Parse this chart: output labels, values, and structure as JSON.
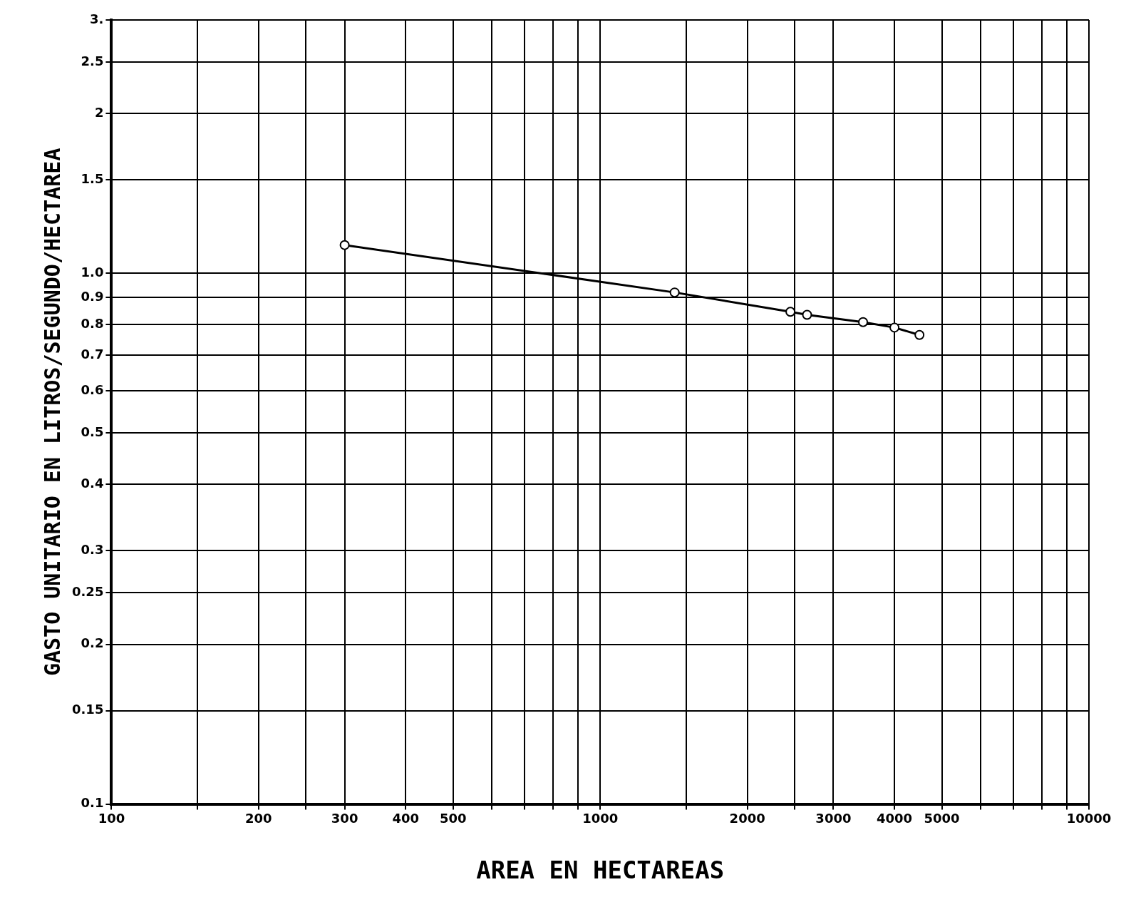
{
  "chart_data": {
    "type": "line",
    "xlabel": "AREA EN HECTAREAS",
    "ylabel": "GASTO UNITARIO EN LITROS/SEGUNDO/HECTAREA",
    "x": [
      300,
      1420,
      2450,
      2650,
      3450,
      4000,
      4500
    ],
    "series": [
      {
        "color": "#000000",
        "values": [
          1.13,
          0.92,
          0.846,
          0.835,
          0.809,
          0.79,
          0.765
        ]
      }
    ],
    "log": "xy",
    "xlim": [
      100,
      10000
    ],
    "ylim": [
      0.1,
      3
    ],
    "xticks": [
      100,
      {
        "value": 150,
        "label": null
      },
      200,
      {
        "value": 250,
        "label": null
      },
      300,
      400,
      500,
      {
        "value": 600,
        "label": null
      },
      {
        "value": 700,
        "label": null
      },
      {
        "value": 800,
        "label": null
      },
      {
        "value": 900,
        "label": null
      },
      1000,
      {
        "value": 1500,
        "label": null
      },
      2000,
      {
        "value": 2500,
        "label": null
      },
      3000,
      4000,
      5000,
      {
        "value": 6000,
        "label": null
      },
      {
        "value": 7000,
        "label": null
      },
      {
        "value": 8000,
        "label": null
      },
      {
        "value": 9000,
        "label": null
      },
      10000
    ],
    "yticks": [
      {
        "value": 0.1,
        "label": "0.1"
      },
      0.15,
      0.2,
      0.25,
      0.3,
      0.4,
      0.5,
      0.6,
      0.7,
      0.8,
      0.9,
      {
        "value": 1,
        "label": "1.0"
      },
      1.5,
      2,
      2.5,
      {
        "value": 3,
        "label": "3."
      }
    ],
    "grid": true,
    "marker": "circle",
    "line_style": "solid"
  }
}
